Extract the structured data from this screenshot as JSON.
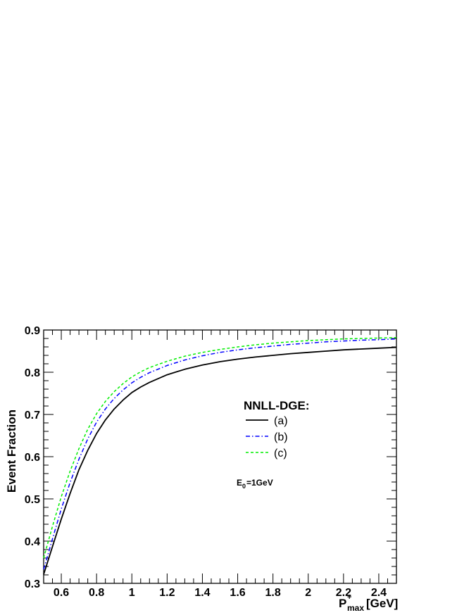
{
  "chart_data": {
    "type": "line",
    "title": "",
    "xlabel": {
      "main": "P",
      "superscript": "+",
      "subscript": "max",
      "unit": "[GeV]"
    },
    "ylabel": "Event Fraction",
    "xlim": [
      0.5,
      2.5
    ],
    "ylim": [
      0.3,
      0.9
    ],
    "xticks": [
      0.6,
      0.8,
      1,
      1.2,
      1.4,
      1.6,
      1.8,
      2,
      2.2,
      2.4
    ],
    "xtick_labels": [
      "0.6",
      "0.8",
      "1",
      "1.2",
      "1.4",
      "1.6",
      "1.8",
      "2",
      "2.2",
      "2.4"
    ],
    "yticks": [
      0.3,
      0.4,
      0.5,
      0.6,
      0.7,
      0.8,
      0.9
    ],
    "ytick_labels": [
      "0.3",
      "0.4",
      "0.5",
      "0.6",
      "0.7",
      "0.8",
      "0.9"
    ],
    "legend_title": "NNLL-DGE:",
    "legend_position": "center-right",
    "annotation": {
      "main": "E",
      "subscript": "0",
      "rest": "=1GeV"
    },
    "grid": false,
    "x": [
      0.5,
      0.55,
      0.6,
      0.65,
      0.7,
      0.75,
      0.8,
      0.85,
      0.9,
      0.95,
      1.0,
      1.05,
      1.1,
      1.2,
      1.3,
      1.4,
      1.5,
      1.6,
      1.7,
      1.8,
      1.9,
      2.0,
      2.1,
      2.2,
      2.3,
      2.4,
      2.5
    ],
    "series": [
      {
        "name": "(a)",
        "style": "solid",
        "color": "#000000",
        "values": [
          0.321,
          0.387,
          0.452,
          0.513,
          0.569,
          0.615,
          0.655,
          0.687,
          0.713,
          0.734,
          0.752,
          0.765,
          0.776,
          0.794,
          0.807,
          0.817,
          0.825,
          0.831,
          0.836,
          0.84,
          0.844,
          0.847,
          0.85,
          0.853,
          0.855,
          0.857,
          0.859
        ]
      },
      {
        "name": "(b)",
        "style": "dashdot",
        "color": "#0000ff",
        "values": [
          0.333,
          0.405,
          0.476,
          0.539,
          0.594,
          0.642,
          0.682,
          0.713,
          0.738,
          0.758,
          0.775,
          0.788,
          0.799,
          0.816,
          0.829,
          0.839,
          0.847,
          0.853,
          0.858,
          0.862,
          0.866,
          0.869,
          0.872,
          0.874,
          0.876,
          0.877,
          0.879
        ]
      },
      {
        "name": "(c)",
        "style": "dashed",
        "color": "#00ee00",
        "values": [
          0.36,
          0.435,
          0.505,
          0.566,
          0.619,
          0.665,
          0.702,
          0.731,
          0.754,
          0.773,
          0.789,
          0.801,
          0.811,
          0.826,
          0.838,
          0.847,
          0.854,
          0.86,
          0.865,
          0.869,
          0.872,
          0.875,
          0.877,
          0.879,
          0.88,
          0.881,
          0.882
        ]
      }
    ]
  }
}
